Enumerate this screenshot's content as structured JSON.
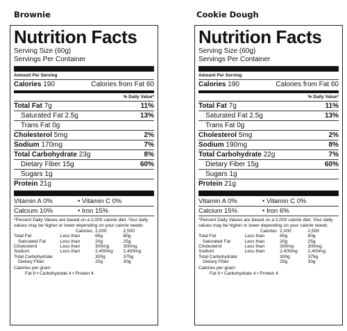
{
  "common": {
    "nf_title": "Nutrition Facts",
    "serving_size": "Serving Size  (60g)",
    "servings_per_container": "Servings Per Container",
    "amount_per_serving": "Amount Per Serving",
    "dv_header": "% Daily Value*",
    "footnote": "*Percent Daily Values are based on a 2,000 calorie diet. Your daily values may be higher or lower depending on your calorie needs:",
    "table_header": [
      "",
      "",
      "Calories",
      "2,000",
      "2,500"
    ],
    "table_rows": [
      [
        "Total Fat",
        "Less than",
        "65g",
        "80g"
      ],
      [
        "Saturated Fat",
        "Less than",
        "20g",
        "25g"
      ],
      [
        "Cholesterol",
        "Less than",
        "300mg",
        "300mg"
      ],
      [
        "Sodium",
        "Less than",
        "2,400mg",
        "2,400mg"
      ],
      [
        "Total Carbohydrate",
        "",
        "300g",
        "375g"
      ],
      [
        "Dietary Fiber",
        "",
        "25g",
        "30g"
      ]
    ],
    "calories_per_gram": "Calories per gram:",
    "cpg_values": "Fat 9   •   Carbohydrate 4   •   Protein 4",
    "labels": {
      "calories": "Calories",
      "calories_fat": "Calories from Fat",
      "total_fat": "Total Fat",
      "sat_fat": "Saturated Fat",
      "trans_fat": "Trans Fat",
      "cholesterol": "Cholesterol",
      "sodium": "Sodium",
      "carb": "Total Carbohydrate",
      "fiber": "Dietary Fiber",
      "sugars": "Sugars",
      "protein": "Protein",
      "vit_a": "Vitamin A",
      "vit_c": "•  Vitamin C",
      "calcium": "Calcium",
      "iron": "•  Iron"
    }
  },
  "labels": [
    {
      "product": "Brownie",
      "calories": "190",
      "calories_fat": "60",
      "total_fat": "7g",
      "total_fat_dv": "11%",
      "sat_fat": "2.5g",
      "sat_fat_dv": "13%",
      "trans_fat": "0g",
      "cholesterol": "5mg",
      "cholesterol_dv": "2%",
      "sodium": "170mg",
      "sodium_dv": "7%",
      "carb": "23g",
      "carb_dv": "8%",
      "fiber": "15g",
      "fiber_dv": "60%",
      "sugars": "1g",
      "protein": "21g",
      "vit_a": "0%",
      "vit_c": "0%",
      "calcium": "10%",
      "iron": "15%"
    },
    {
      "product": "Cookie Dough",
      "calories": "190",
      "calories_fat": "60",
      "total_fat": "7g",
      "total_fat_dv": "11%",
      "sat_fat": "2.5g",
      "sat_fat_dv": "13%",
      "trans_fat": "0g",
      "cholesterol": "5mg",
      "cholesterol_dv": "2%",
      "sodium": "190mg",
      "sodium_dv": "8%",
      "carb": "22g",
      "carb_dv": "7%",
      "fiber": "15g",
      "fiber_dv": "60%",
      "sugars": "1g",
      "protein": "21g",
      "vit_a": "0%",
      "vit_c": "0%",
      "calcium": "15%",
      "iron": "6%"
    }
  ]
}
